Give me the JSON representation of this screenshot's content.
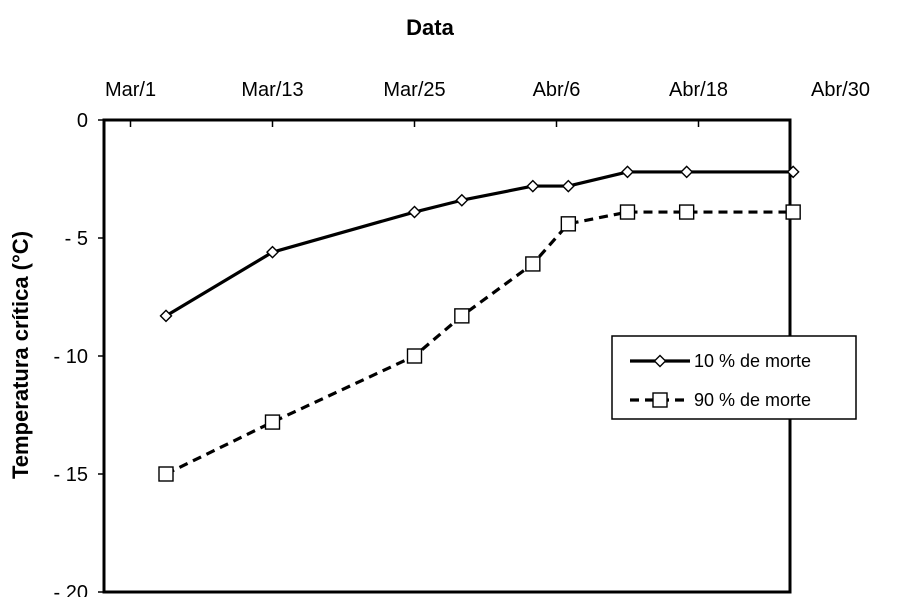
{
  "chart_data": {
    "type": "line",
    "title": "Data",
    "ylabel": "Temperatura crítica (°C)",
    "xlabel": "",
    "x_axis_position": "top",
    "x_ticks": [
      "Mar/1",
      "Mar/13",
      "Mar/25",
      "Abr/6",
      "Abr/18",
      "Abr/30"
    ],
    "x_tick_values": [
      0,
      12,
      24,
      36,
      48,
      60
    ],
    "xlim": [
      0,
      60
    ],
    "ylim": [
      -20,
      0
    ],
    "y_ticks": [
      0,
      -5,
      -10,
      -15,
      -20
    ],
    "grid": false,
    "legend_position": "right",
    "series": [
      {
        "name": "10 % de morte",
        "marker": "diamond",
        "line_style": "solid",
        "x": [
          3,
          12,
          24,
          28,
          34,
          37,
          42,
          47,
          56
        ],
        "y": [
          -8.3,
          -5.6,
          -3.9,
          -3.4,
          -2.8,
          -2.8,
          -2.2,
          -2.2,
          -2.2
        ]
      },
      {
        "name": "90 % de morte",
        "marker": "square",
        "line_style": "dashed",
        "x": [
          3,
          12,
          24,
          28,
          34,
          37,
          42,
          47,
          56
        ],
        "y": [
          -15.0,
          -12.8,
          -10.0,
          -8.3,
          -6.1,
          -4.4,
          -3.9,
          -3.9,
          -3.9
        ]
      }
    ],
    "colors": {
      "line": "#000000",
      "marker_fill": "#ffffff",
      "background": "#ffffff"
    }
  }
}
